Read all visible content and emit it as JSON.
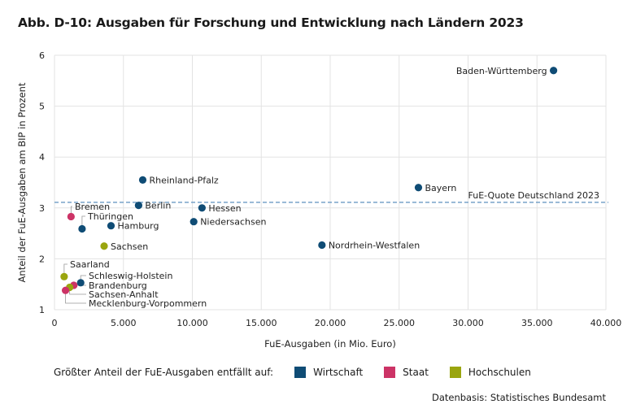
{
  "title": "Abb. D-10: Ausgaben für Forschung und Entwicklung nach Ländern 2023",
  "source": "Datenbasis: Statistisches Bundesamt",
  "legend": {
    "prefix": "Größter Anteil der FuE-Ausgaben entfällt auf:",
    "items": [
      {
        "label": "Wirtschaft",
        "color": "#0f4c75"
      },
      {
        "label": "Staat",
        "color": "#cc3366"
      },
      {
        "label": "Hochschulen",
        "color": "#9aa50f"
      }
    ]
  },
  "chart_data": {
    "type": "scatter",
    "xlabel": "FuE-Ausgaben (in Mio. Euro)",
    "ylabel": "Anteil der FuE-Ausgaben am BIP in Prozent",
    "xlim": [
      0,
      40000
    ],
    "ylim": [
      1,
      6
    ],
    "xticks": [
      0,
      5000,
      10000,
      15000,
      20000,
      25000,
      30000,
      35000,
      40000
    ],
    "xtick_labels": [
      "0",
      "5.000",
      "10.000",
      "15.000",
      "20.000",
      "25.000",
      "30.000",
      "35.000",
      "40.000"
    ],
    "yticks": [
      1,
      2,
      3,
      4,
      5,
      6
    ],
    "ytick_labels": [
      "1",
      "2",
      "3",
      "4",
      "5",
      "6"
    ],
    "grid": true,
    "reference_line": {
      "label": "FuE-Quote Deutschland 2023",
      "y": 3.11
    },
    "points": [
      {
        "name": "Baden-Württemberg",
        "x": 36200,
        "y": 5.7,
        "sector": "Wirtschaft"
      },
      {
        "name": "Bayern",
        "x": 26400,
        "y": 3.4,
        "sector": "Wirtschaft"
      },
      {
        "name": "Rheinland-Pfalz",
        "x": 6400,
        "y": 3.55,
        "sector": "Wirtschaft"
      },
      {
        "name": "Berlin",
        "x": 6100,
        "y": 3.05,
        "sector": "Wirtschaft"
      },
      {
        "name": "Hessen",
        "x": 10700,
        "y": 3.0,
        "sector": "Wirtschaft"
      },
      {
        "name": "Niedersachsen",
        "x": 10100,
        "y": 2.73,
        "sector": "Wirtschaft"
      },
      {
        "name": "Nordrhein-Westfalen",
        "x": 19400,
        "y": 2.27,
        "sector": "Wirtschaft"
      },
      {
        "name": "Hamburg",
        "x": 4100,
        "y": 2.65,
        "sector": "Wirtschaft"
      },
      {
        "name": "Thüringen",
        "x": 2000,
        "y": 2.59,
        "sector": "Wirtschaft"
      },
      {
        "name": "Bremen",
        "x": 1200,
        "y": 2.83,
        "sector": "Staat"
      },
      {
        "name": "Sachsen",
        "x": 3600,
        "y": 2.25,
        "sector": "Hochschulen"
      },
      {
        "name": "Saarland",
        "x": 700,
        "y": 1.65,
        "sector": "Hochschulen"
      },
      {
        "name": "Schleswig-Holstein",
        "x": 1900,
        "y": 1.53,
        "sector": "Wirtschaft"
      },
      {
        "name": "Brandenburg",
        "x": 1400,
        "y": 1.48,
        "sector": "Staat"
      },
      {
        "name": "Sachsen-Anhalt",
        "x": 1100,
        "y": 1.44,
        "sector": "Hochschulen"
      },
      {
        "name": "Mecklenburg-Vorpommern",
        "x": 800,
        "y": 1.38,
        "sector": "Staat"
      }
    ]
  }
}
